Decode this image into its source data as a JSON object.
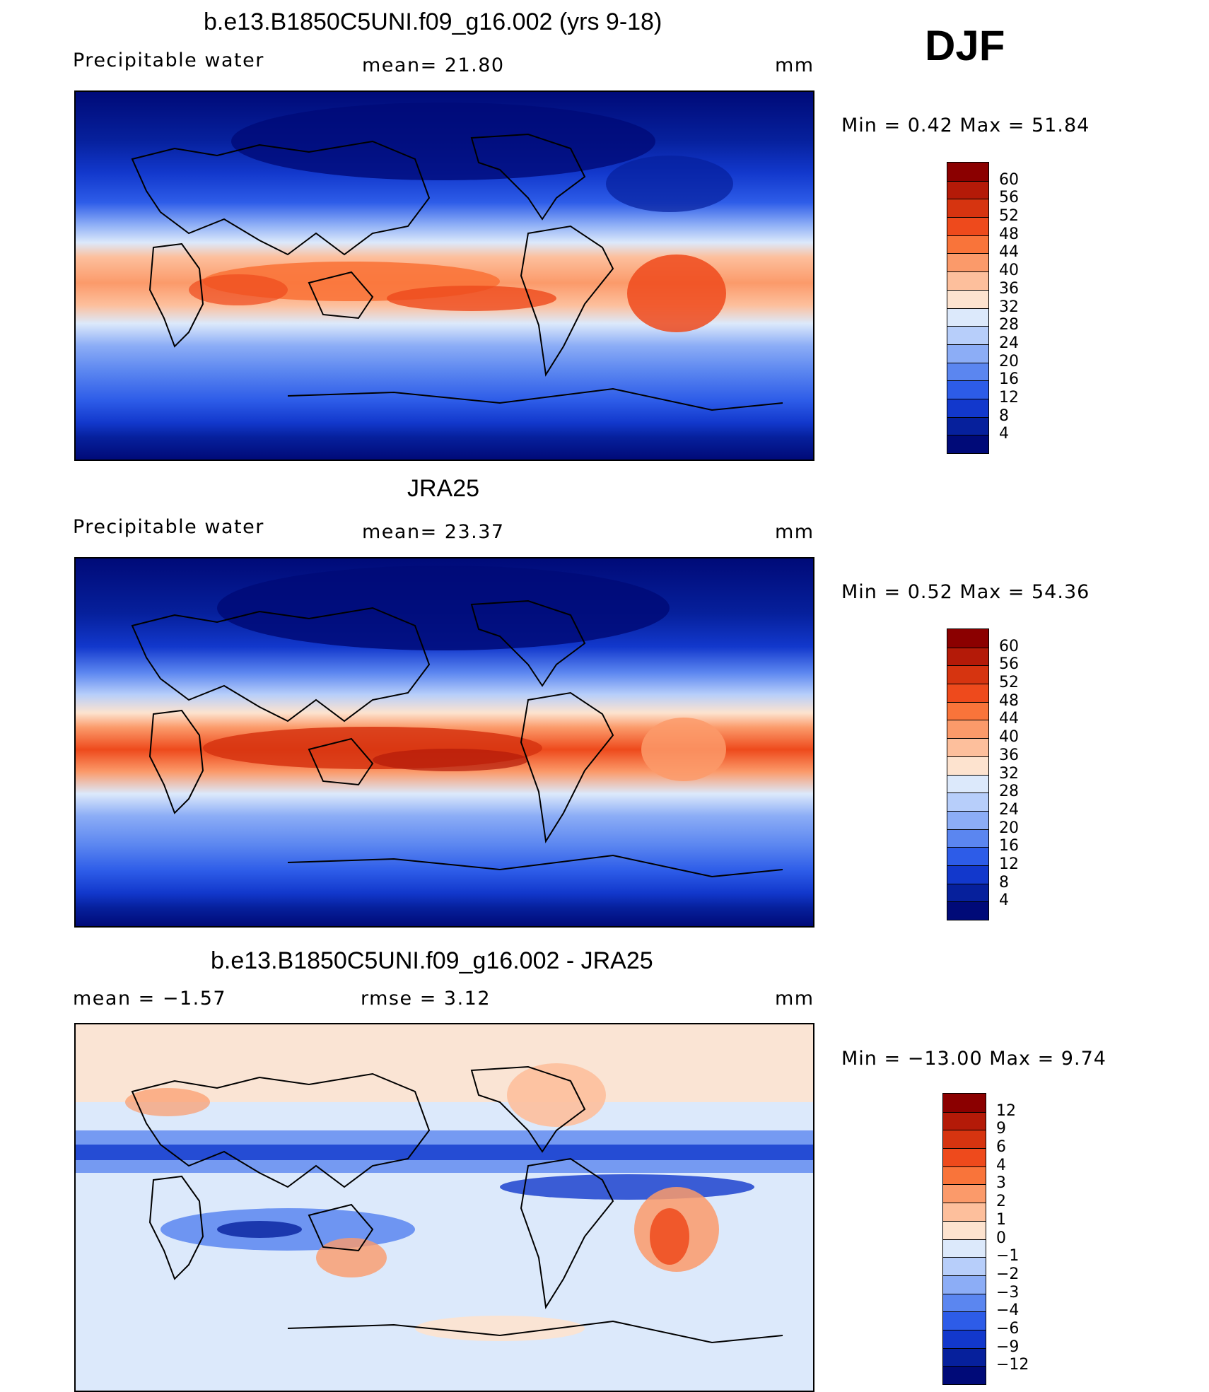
{
  "season": "DJF",
  "panels": [
    {
      "title": "b.e13.B1850C5UNI.f09_g16.002 (yrs 9-18)",
      "left_label": "Precipitable  water",
      "center_label": "mean=   21.80",
      "units": "mm",
      "minmax": "Min  =     0.42  Max  =    51.84",
      "colorbar_labels": [
        "60",
        "56",
        "52",
        "48",
        "44",
        "40",
        "36",
        "32",
        "28",
        "24",
        "20",
        "16",
        "12",
        "8",
        "4"
      ],
      "colorbar_colors": [
        "#8b0000",
        "#b41a08",
        "#d63410",
        "#ee4a1c",
        "#f9743a",
        "#fb9a6a",
        "#fdbf9c",
        "#fde3cf",
        "#dce9fb",
        "#b7cefa",
        "#8cadf6",
        "#5b86f0",
        "#2d5ce8",
        "#1238cc",
        "#06209c",
        "#000a78"
      ]
    },
    {
      "title": "JRA25",
      "left_label": "Precipitable  water",
      "center_label": "mean=   23.37",
      "units": "mm",
      "minmax": "Min  =     0.52  Max  =    54.36",
      "colorbar_labels": [
        "60",
        "56",
        "52",
        "48",
        "44",
        "40",
        "36",
        "32",
        "28",
        "24",
        "20",
        "16",
        "12",
        "8",
        "4"
      ],
      "colorbar_colors": [
        "#8b0000",
        "#b41a08",
        "#d63410",
        "#ee4a1c",
        "#f9743a",
        "#fb9a6a",
        "#fdbf9c",
        "#fde3cf",
        "#dce9fb",
        "#b7cefa",
        "#8cadf6",
        "#5b86f0",
        "#2d5ce8",
        "#1238cc",
        "#06209c",
        "#000a78"
      ]
    },
    {
      "title": "b.e13.B1850C5UNI.f09_g16.002 - JRA25",
      "left_label": "mean  =    −1.57",
      "center_label": "rmse  =     3.12",
      "units": "mm",
      "minmax": "Min  = −13.00  Max  =     9.74",
      "colorbar_labels": [
        "12",
        "9",
        "6",
        "4",
        "3",
        "2",
        "1",
        "0",
        "−1",
        "−2",
        "−3",
        "−4",
        "−6",
        "−9",
        "−12"
      ],
      "colorbar_colors": [
        "#8b0000",
        "#b41a08",
        "#d63410",
        "#ee4a1c",
        "#f9743a",
        "#fb9a6a",
        "#fdbf9c",
        "#fde3cf",
        "#dce9fb",
        "#b7cefa",
        "#8cadf6",
        "#5b86f0",
        "#2d5ce8",
        "#1238cc",
        "#06209c",
        "#000a78"
      ]
    }
  ]
}
